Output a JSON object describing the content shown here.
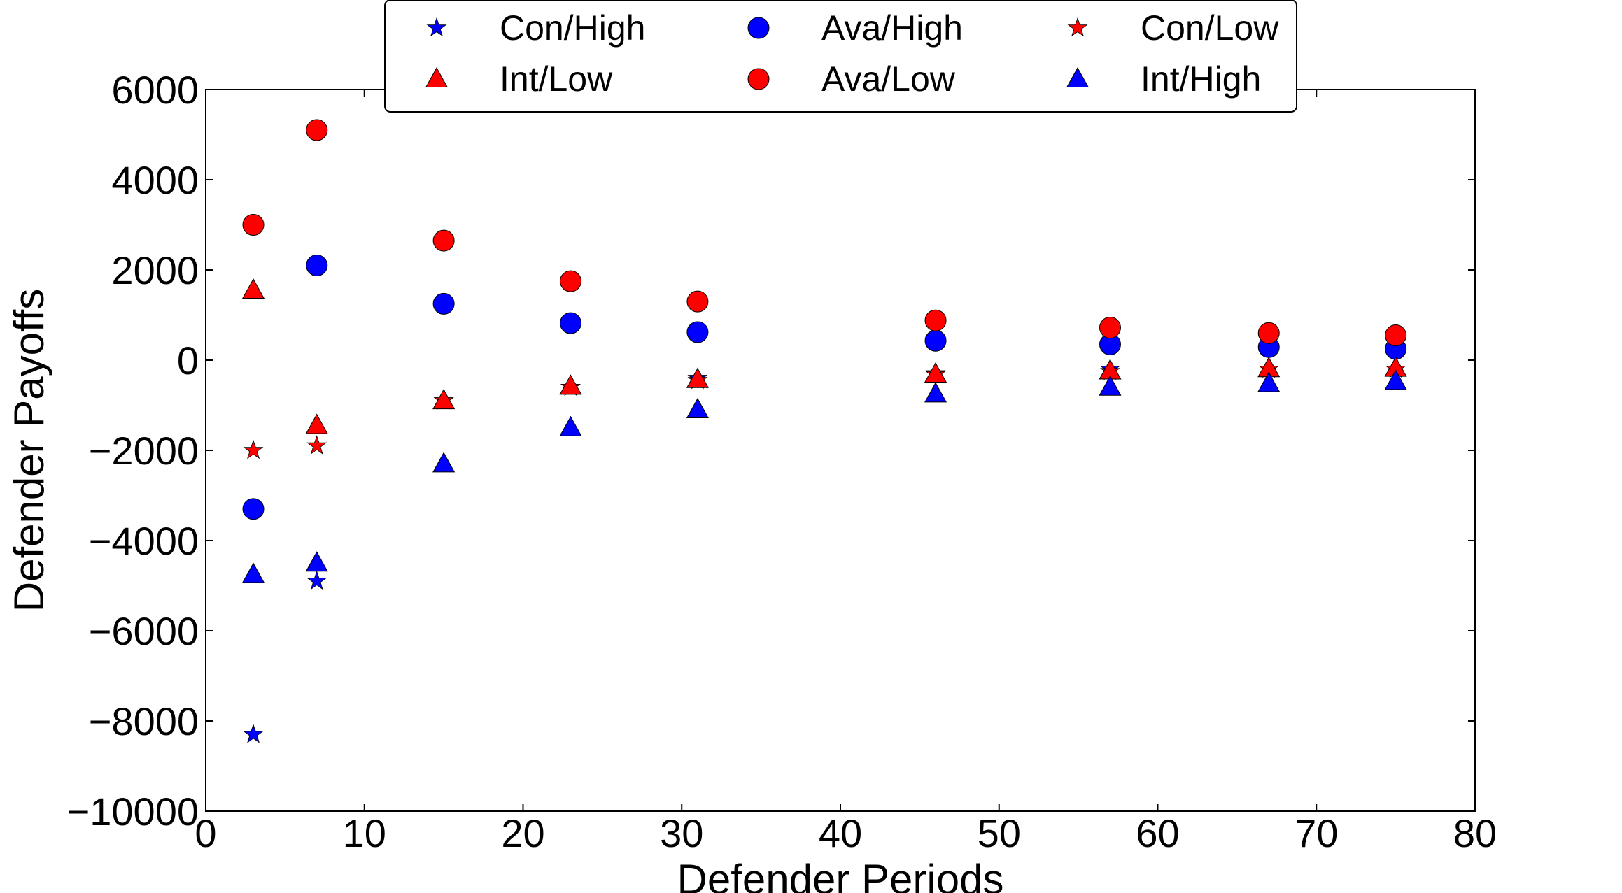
{
  "chart_data": {
    "type": "scatter",
    "title": "",
    "xlabel": "Defender Periods",
    "ylabel": "Defender Payoffs",
    "xlim": [
      0,
      80
    ],
    "ylim": [
      -10000,
      6000
    ],
    "xticks": [
      "0",
      "10",
      "20",
      "30",
      "40",
      "50",
      "60",
      "70",
      "80"
    ],
    "yticks": [
      "−10000",
      "−8000",
      "−6000",
      "−4000",
      "−2000",
      "0",
      "2000",
      "4000",
      "6000"
    ],
    "grid": false,
    "legend_position": "top-center",
    "x": [
      3,
      7,
      15,
      23,
      31,
      46,
      57,
      67,
      75
    ],
    "series": [
      {
        "name": "Con/High",
        "marker": "star",
        "color": "#0000ff",
        "values": [
          -8300,
          -4900,
          -900,
          -600,
          -400,
          -300,
          -200,
          -200,
          -200
        ]
      },
      {
        "name": "Ava/High",
        "marker": "circle",
        "color": "#0000ff",
        "values": [
          -3300,
          2100,
          1250,
          820,
          620,
          430,
          350,
          290,
          250
        ]
      },
      {
        "name": "Con/Low",
        "marker": "star",
        "color": "#ff0000",
        "values": [
          -2000,
          -1900,
          -900,
          -600,
          -450,
          -320,
          -250,
          -200,
          -200
        ]
      },
      {
        "name": "Int/Low",
        "marker": "triangle",
        "color": "#ff0000",
        "values": [
          1550,
          -1450,
          -900,
          -580,
          -430,
          -310,
          -240,
          -190,
          -180
        ]
      },
      {
        "name": "Ava/Low",
        "marker": "circle",
        "color": "#ff0000",
        "values": [
          3000,
          5100,
          2650,
          1750,
          1300,
          880,
          720,
          600,
          550
        ]
      },
      {
        "name": "Int/High",
        "marker": "triangle",
        "color": "#0000ff",
        "values": [
          -4750,
          -4500,
          -2300,
          -1500,
          -1100,
          -750,
          -600,
          -520,
          -470
        ]
      }
    ]
  }
}
